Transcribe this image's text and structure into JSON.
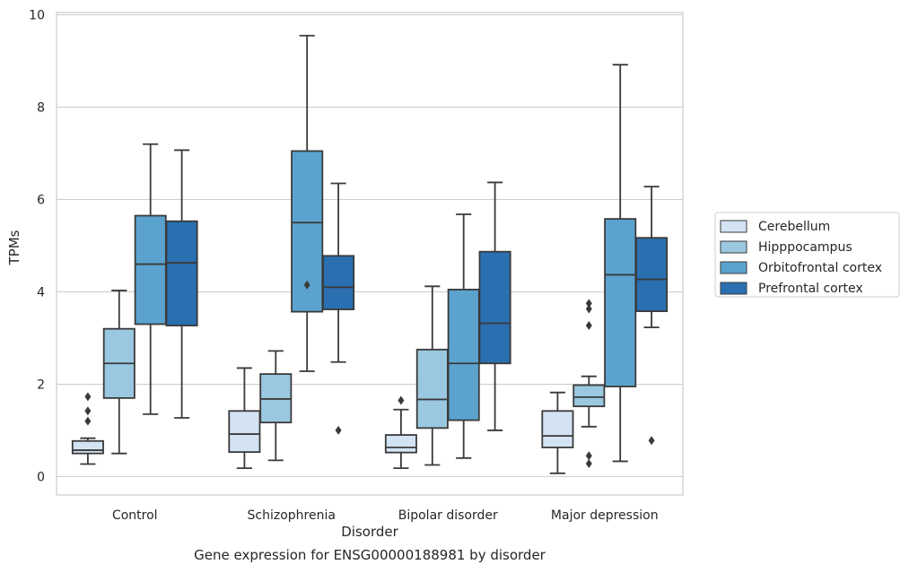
{
  "caption": "Gene expression for ENSG00000188981 by disorder",
  "chart_data": {
    "type": "box",
    "title": "",
    "xlabel": "Disorder",
    "ylabel": "TPMs",
    "ylim": [
      -0.4,
      10.05
    ],
    "yticks": [
      0,
      2,
      4,
      6,
      8,
      10
    ],
    "grid": true,
    "legend_position": "right",
    "categories": [
      "Control",
      "Schizophrenia",
      "Bipolar disorder",
      "Major depression"
    ],
    "series": [
      {
        "name": "Cerebellum",
        "color": "#d3e3f3",
        "boxes": [
          {
            "whislo": 0.27,
            "q1": 0.5,
            "med": 0.57,
            "q3": 0.77,
            "whishi": 0.83,
            "fliers": [
              1.2,
              1.42,
              1.73
            ]
          },
          {
            "whislo": 0.18,
            "q1": 0.53,
            "med": 0.92,
            "q3": 1.42,
            "whishi": 2.35,
            "fliers": []
          },
          {
            "whislo": 0.18,
            "q1": 0.52,
            "med": 0.63,
            "q3": 0.9,
            "whishi": 1.45,
            "fliers": [
              1.65
            ]
          },
          {
            "whislo": 0.07,
            "q1": 0.63,
            "med": 0.88,
            "q3": 1.42,
            "whishi": 1.82,
            "fliers": []
          }
        ]
      },
      {
        "name": "Hipppocampus",
        "color": "#9ac8e0",
        "boxes": [
          {
            "whislo": 0.5,
            "q1": 1.7,
            "med": 2.45,
            "q3": 3.2,
            "whishi": 4.03,
            "fliers": []
          },
          {
            "whislo": 0.35,
            "q1": 1.17,
            "med": 1.68,
            "q3": 2.22,
            "whishi": 2.72,
            "fliers": []
          },
          {
            "whislo": 0.25,
            "q1": 1.05,
            "med": 1.67,
            "q3": 2.75,
            "whishi": 4.12,
            "fliers": []
          },
          {
            "whislo": 1.08,
            "q1": 1.52,
            "med": 1.72,
            "q3": 1.98,
            "whishi": 2.17,
            "fliers": [
              0.28,
              0.45,
              3.27,
              3.63,
              3.75
            ]
          }
        ]
      },
      {
        "name": "Orbitofrontal cortex",
        "color": "#5ba3cf",
        "boxes": [
          {
            "whislo": 1.35,
            "q1": 3.3,
            "med": 4.6,
            "q3": 5.65,
            "whishi": 7.2,
            "fliers": []
          },
          {
            "whislo": 2.28,
            "q1": 3.57,
            "med": 5.5,
            "q3": 7.05,
            "whishi": 9.55,
            "fliers": [
              4.15
            ]
          },
          {
            "whislo": 0.4,
            "q1": 1.22,
            "med": 2.45,
            "q3": 4.05,
            "whishi": 5.68,
            "fliers": []
          },
          {
            "whislo": 0.33,
            "q1": 1.95,
            "med": 4.37,
            "q3": 5.58,
            "whishi": 8.92,
            "fliers": []
          }
        ]
      },
      {
        "name": "Prefrontal cortex",
        "color": "#2a6fb0",
        "boxes": [
          {
            "whislo": 1.27,
            "q1": 3.27,
            "med": 4.63,
            "q3": 5.53,
            "whishi": 7.07,
            "fliers": []
          },
          {
            "whislo": 2.48,
            "q1": 3.62,
            "med": 4.1,
            "q3": 4.78,
            "whishi": 6.35,
            "fliers": [
              1.0
            ]
          },
          {
            "whislo": 1.0,
            "q1": 2.45,
            "med": 3.32,
            "q3": 4.87,
            "whishi": 6.37,
            "fliers": []
          },
          {
            "whislo": 3.23,
            "q1": 3.58,
            "med": 4.27,
            "q3": 5.17,
            "whishi": 6.28,
            "fliers": [
              0.78
            ]
          }
        ]
      }
    ]
  }
}
